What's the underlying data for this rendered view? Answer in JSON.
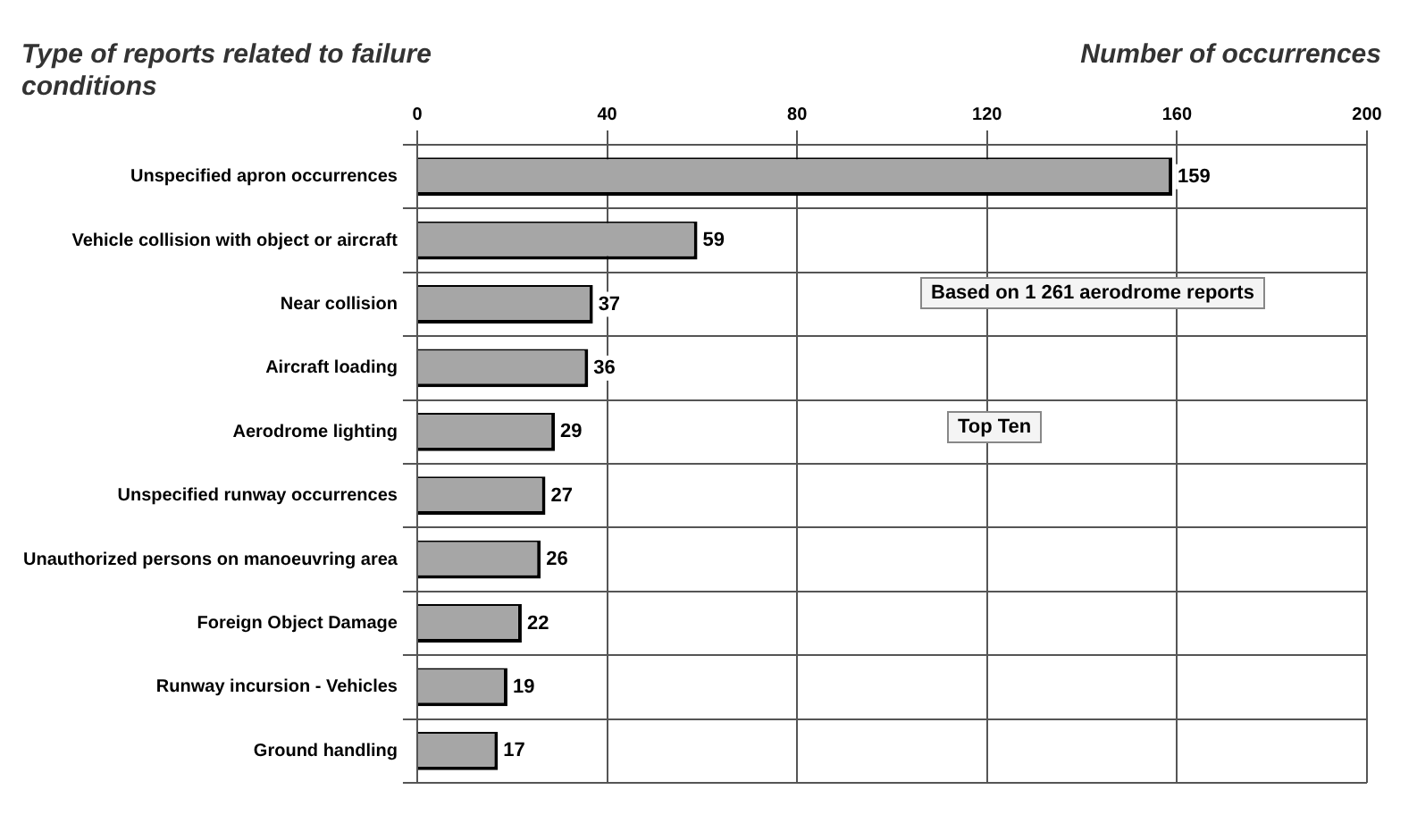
{
  "chart_data": {
    "type": "bar",
    "orientation": "horizontal",
    "title": "Type of reports related to failure conditions",
    "xlabel": "Number of occurrences",
    "categories": [
      "Unspecified apron occurrences",
      "Vehicle collision with object or aircraft",
      "Near collision",
      "Aircraft loading",
      "Aerodrome lighting",
      "Unspecified runway occurrences",
      "Unauthorized persons on manoeuvring area",
      "Foreign Object Damage",
      "Runway incursion - Vehicles",
      "Ground handling"
    ],
    "values": [
      159,
      59,
      37,
      36,
      29,
      27,
      26,
      22,
      19,
      17
    ],
    "color": "#a6a6a6",
    "xlim": [
      0,
      200
    ],
    "xticks": [
      0,
      40,
      80,
      120,
      160,
      200
    ],
    "grid": true,
    "data_labels": true,
    "annotations": [
      "Based on 1 261 aerodrome reports",
      "Top Ten"
    ]
  }
}
